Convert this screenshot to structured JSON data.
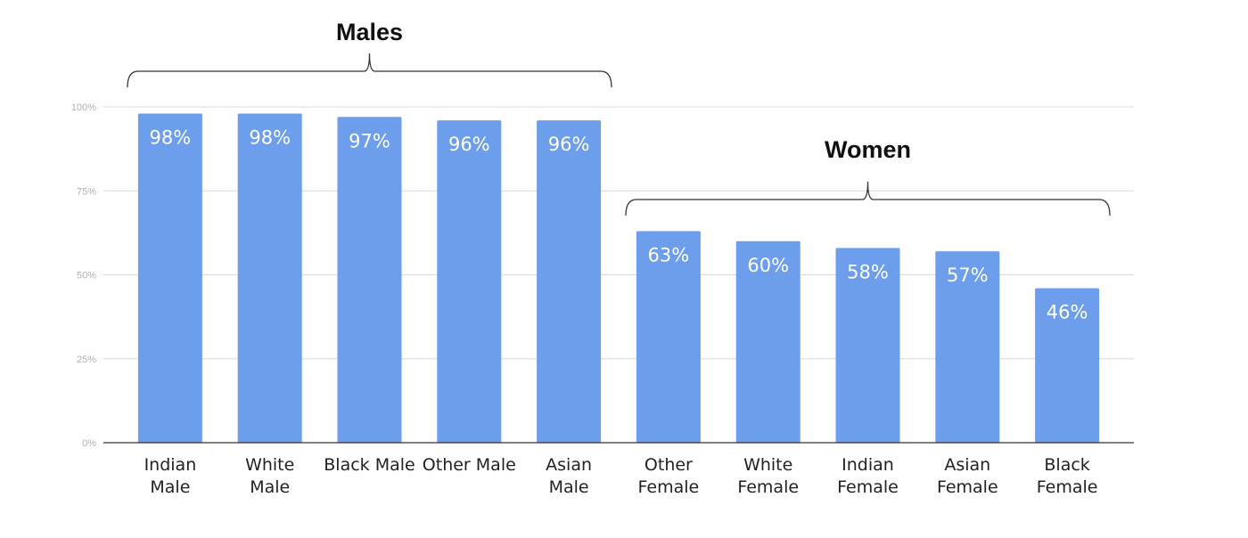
{
  "chart_data": {
    "type": "bar",
    "title": "",
    "xlabel": "",
    "ylabel": "",
    "ylim": [
      0,
      100
    ],
    "y_ticks": [
      0,
      25,
      50,
      75,
      100
    ],
    "y_tick_labels": [
      "0%",
      "25%",
      "50%",
      "75%",
      "100%"
    ],
    "grid": true,
    "bar_color": "#6d9eeb",
    "categories": [
      [
        "Indian",
        "Male"
      ],
      [
        "White",
        "Male"
      ],
      [
        "Black Male"
      ],
      [
        "Other Male"
      ],
      [
        "Asian",
        "Male"
      ],
      [
        "Other",
        "Female"
      ],
      [
        "White",
        "Female"
      ],
      [
        "Indian",
        "Female"
      ],
      [
        "Asian",
        "Female"
      ],
      [
        "Black",
        "Female"
      ]
    ],
    "values": [
      98,
      98,
      97,
      96,
      96,
      63,
      60,
      58,
      57,
      46
    ],
    "value_labels": [
      "98%",
      "98%",
      "97%",
      "96%",
      "96%",
      "63%",
      "60%",
      "58%",
      "57%",
      "46%"
    ],
    "groups": [
      {
        "label": "Males",
        "from": 0,
        "to": 4
      },
      {
        "label": "Women",
        "from": 5,
        "to": 9
      }
    ]
  }
}
